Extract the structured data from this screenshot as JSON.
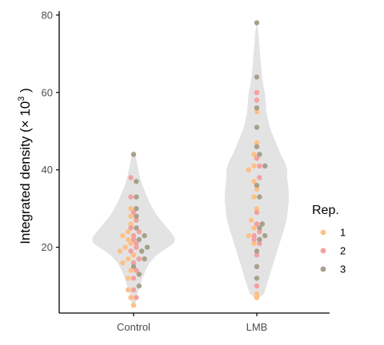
{
  "chart_data": {
    "type": "scatter",
    "subtype": "violin-with-beeswarm",
    "ylabel_prefix": "Integrated density (",
    "ylabel_mult": "× 10",
    "ylabel_exp": "3",
    "ylabel_suffix": " )",
    "xlabel": "",
    "ylim": [
      3,
      81
    ],
    "y_ticks": [
      20,
      40,
      60,
      80
    ],
    "categories": [
      "Control",
      "LMB"
    ],
    "grid": false,
    "legend": {
      "title": "Rep.",
      "position": "right",
      "items": [
        {
          "label": "1",
          "color": "#fdc086"
        },
        {
          "label": "2",
          "color": "#f4a0a0"
        },
        {
          "label": "3",
          "color": "#a8a08a"
        }
      ]
    },
    "violin_color": "#e3e3e3",
    "violins": [
      {
        "category": "Control",
        "profile": [
          [
            4.5,
            0.2
          ],
          [
            6,
            3
          ],
          [
            8,
            5
          ],
          [
            10,
            8
          ],
          [
            12,
            11
          ],
          [
            14,
            15
          ],
          [
            16,
            20
          ],
          [
            18,
            29
          ],
          [
            20,
            43
          ],
          [
            21,
            50
          ],
          [
            22,
            52
          ],
          [
            23,
            50
          ],
          [
            24,
            46
          ],
          [
            26,
            38
          ],
          [
            28,
            30
          ],
          [
            30,
            24
          ],
          [
            32,
            19
          ],
          [
            34,
            15
          ],
          [
            36,
            11
          ],
          [
            38,
            8
          ],
          [
            40,
            6
          ],
          [
            42,
            4
          ],
          [
            44,
            2
          ],
          [
            45,
            0.2
          ]
        ]
      },
      {
        "category": "LMB",
        "profile": [
          [
            6.5,
            0.2
          ],
          [
            8,
            9
          ],
          [
            10,
            12
          ],
          [
            12,
            15
          ],
          [
            14,
            18
          ],
          [
            16,
            21
          ],
          [
            18,
            24
          ],
          [
            20,
            27
          ],
          [
            22,
            30
          ],
          [
            24,
            33
          ],
          [
            26,
            36
          ],
          [
            28,
            38
          ],
          [
            30,
            39
          ],
          [
            32,
            40
          ],
          [
            34,
            40
          ],
          [
            36,
            39
          ],
          [
            38,
            38
          ],
          [
            40,
            38
          ],
          [
            42,
            35
          ],
          [
            44,
            30
          ],
          [
            46,
            26
          ],
          [
            48,
            22
          ],
          [
            50,
            18
          ],
          [
            52,
            15
          ],
          [
            55,
            12
          ],
          [
            58,
            11
          ],
          [
            60,
            10
          ],
          [
            62,
            8
          ],
          [
            65,
            6
          ],
          [
            70,
            4
          ],
          [
            75,
            2
          ],
          [
            78.5,
            0.2
          ]
        ]
      }
    ],
    "series": [
      {
        "name": "1",
        "points": [
          {
            "x": "Control",
            "y": 5
          },
          {
            "x": "Control",
            "y": 7
          },
          {
            "x": "Control",
            "y": 9
          },
          {
            "x": "Control",
            "y": 12
          },
          {
            "x": "Control",
            "y": 14
          },
          {
            "x": "Control",
            "y": 16
          },
          {
            "x": "Control",
            "y": 17
          },
          {
            "x": "Control",
            "y": 18
          },
          {
            "x": "Control",
            "y": 19
          },
          {
            "x": "Control",
            "y": 20
          },
          {
            "x": "Control",
            "y": 21
          },
          {
            "x": "Control",
            "y": 22
          },
          {
            "x": "Control",
            "y": 23
          },
          {
            "x": "Control",
            "y": 24
          },
          {
            "x": "Control",
            "y": 26
          },
          {
            "x": "Control",
            "y": 28
          },
          {
            "x": "Control",
            "y": 30
          },
          {
            "x": "LMB",
            "y": 7
          },
          {
            "x": "LMB",
            "y": 8
          },
          {
            "x": "LMB",
            "y": 21
          },
          {
            "x": "LMB",
            "y": 23
          },
          {
            "x": "LMB",
            "y": 25
          },
          {
            "x": "LMB",
            "y": 27
          },
          {
            "x": "LMB",
            "y": 30
          },
          {
            "x": "LMB",
            "y": 33
          },
          {
            "x": "LMB",
            "y": 35
          },
          {
            "x": "LMB",
            "y": 37
          },
          {
            "x": "LMB",
            "y": 40
          },
          {
            "x": "LMB",
            "y": 41
          },
          {
            "x": "LMB",
            "y": 44
          },
          {
            "x": "LMB",
            "y": 47
          },
          {
            "x": "LMB",
            "y": 55
          }
        ]
      },
      {
        "name": "2",
        "points": [
          {
            "x": "Control",
            "y": 7
          },
          {
            "x": "Control",
            "y": 9
          },
          {
            "x": "Control",
            "y": 12
          },
          {
            "x": "Control",
            "y": 14
          },
          {
            "x": "Control",
            "y": 16
          },
          {
            "x": "Control",
            "y": 17
          },
          {
            "x": "Control",
            "y": 19
          },
          {
            "x": "Control",
            "y": 20
          },
          {
            "x": "Control",
            "y": 21
          },
          {
            "x": "Control",
            "y": 22
          },
          {
            "x": "Control",
            "y": 23
          },
          {
            "x": "Control",
            "y": 24
          },
          {
            "x": "Control",
            "y": 25
          },
          {
            "x": "Control",
            "y": 27
          },
          {
            "x": "Control",
            "y": 29
          },
          {
            "x": "Control",
            "y": 33
          },
          {
            "x": "Control",
            "y": 38
          },
          {
            "x": "LMB",
            "y": 10
          },
          {
            "x": "LMB",
            "y": 18
          },
          {
            "x": "LMB",
            "y": 21
          },
          {
            "x": "LMB",
            "y": 22
          },
          {
            "x": "LMB",
            "y": 23
          },
          {
            "x": "LMB",
            "y": 24
          },
          {
            "x": "LMB",
            "y": 26
          },
          {
            "x": "LMB",
            "y": 29
          },
          {
            "x": "LMB",
            "y": 38
          },
          {
            "x": "LMB",
            "y": 41
          },
          {
            "x": "LMB",
            "y": 43
          },
          {
            "x": "LMB",
            "y": 58
          },
          {
            "x": "LMB",
            "y": 60
          }
        ]
      },
      {
        "name": "3",
        "points": [
          {
            "x": "Control",
            "y": 10
          },
          {
            "x": "Control",
            "y": 13
          },
          {
            "x": "Control",
            "y": 15
          },
          {
            "x": "Control",
            "y": 17
          },
          {
            "x": "Control",
            "y": 19
          },
          {
            "x": "Control",
            "y": 20
          },
          {
            "x": "Control",
            "y": 22
          },
          {
            "x": "Control",
            "y": 23
          },
          {
            "x": "Control",
            "y": 25
          },
          {
            "x": "Control",
            "y": 28
          },
          {
            "x": "Control",
            "y": 30
          },
          {
            "x": "Control",
            "y": 33
          },
          {
            "x": "Control",
            "y": 37
          },
          {
            "x": "Control",
            "y": 44
          },
          {
            "x": "LMB",
            "y": 12
          },
          {
            "x": "LMB",
            "y": 15
          },
          {
            "x": "LMB",
            "y": 19
          },
          {
            "x": "LMB",
            "y": 22
          },
          {
            "x": "LMB",
            "y": 23
          },
          {
            "x": "LMB",
            "y": 25
          },
          {
            "x": "LMB",
            "y": 26
          },
          {
            "x": "LMB",
            "y": 33
          },
          {
            "x": "LMB",
            "y": 36
          },
          {
            "x": "LMB",
            "y": 41
          },
          {
            "x": "LMB",
            "y": 44
          },
          {
            "x": "LMB",
            "y": 46
          },
          {
            "x": "LMB",
            "y": 51
          },
          {
            "x": "LMB",
            "y": 56
          },
          {
            "x": "LMB",
            "y": 64
          },
          {
            "x": "LMB",
            "y": 78
          }
        ]
      }
    ]
  }
}
